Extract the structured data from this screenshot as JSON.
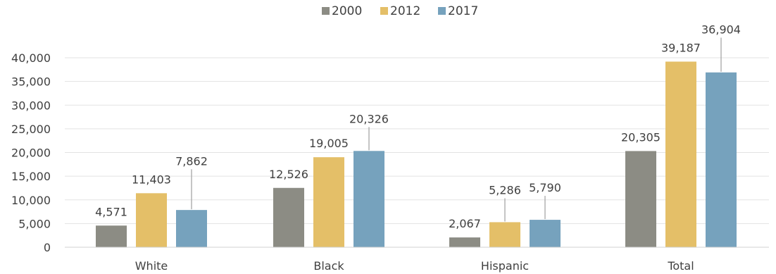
{
  "chart_data": {
    "type": "bar",
    "title": "",
    "xlabel": "",
    "ylabel": "",
    "categories": [
      "White",
      "Black",
      "Hispanic",
      "Total"
    ],
    "series": [
      {
        "name": "2000",
        "color": "#8c8c84",
        "values": [
          4571,
          12526,
          2067,
          20305
        ],
        "labels": [
          "4,571",
          "12,526",
          "2,067",
          "20,305"
        ]
      },
      {
        "name": "2012",
        "color": "#e4bf68",
        "values": [
          11403,
          19005,
          5286,
          39187
        ],
        "labels": [
          "11,403",
          "19,005",
          "5,286",
          "39,187"
        ]
      },
      {
        "name": "2017",
        "color": "#76a2bd",
        "values": [
          7862,
          20326,
          5790,
          36904
        ],
        "labels": [
          "7,862",
          "20,326",
          "5,790",
          "36,904"
        ]
      }
    ],
    "ylim": [
      0,
      40000
    ],
    "yticks": [
      0,
      5000,
      10000,
      15000,
      20000,
      25000,
      30000,
      35000,
      40000
    ],
    "ytick_labels": [
      "0",
      "5,000",
      "10,000",
      "15,000",
      "20,000",
      "25,000",
      "30,000",
      "35,000",
      "40,000"
    ],
    "legend_position": "top-center",
    "grid": true
  }
}
